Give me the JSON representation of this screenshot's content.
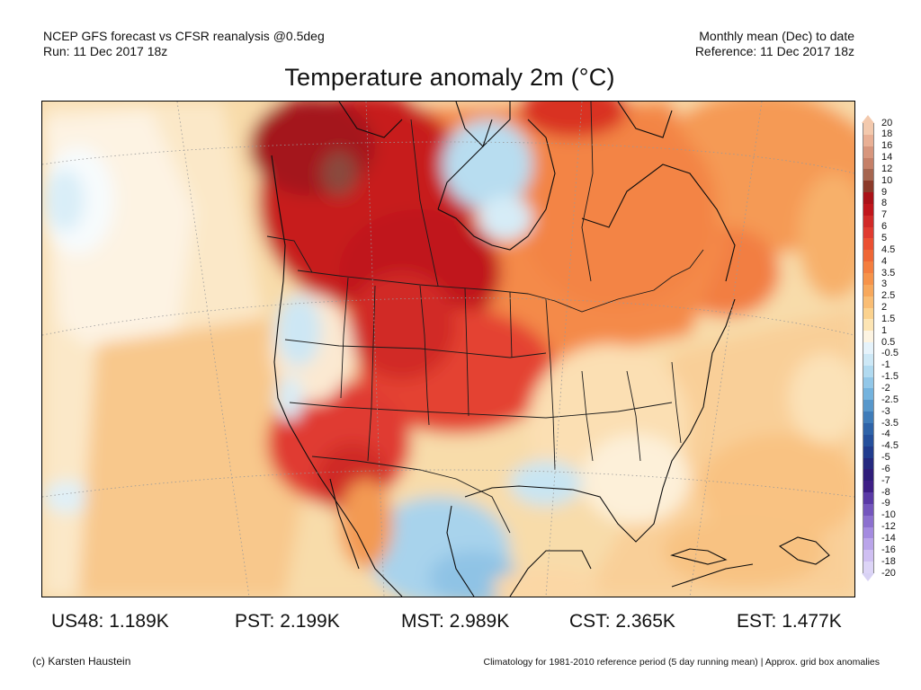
{
  "header": {
    "left_line1": "NCEP GFS forecast vs CFSR reanalysis @0.5deg",
    "left_line2": "Run: 11 Dec 2017 18z",
    "right_line1": "Monthly mean (Dec) to date",
    "right_line2": "Reference: 11 Dec 2017 18z"
  },
  "title": "Temperature anomaly 2m (°C)",
  "regional_means": [
    {
      "region": "US48",
      "value": "1.189K"
    },
    {
      "region": "PST",
      "value": "2.199K"
    },
    {
      "region": "MST",
      "value": "2.989K"
    },
    {
      "region": "CST",
      "value": "2.365K"
    },
    {
      "region": "EST",
      "value": "1.477K"
    }
  ],
  "footer": {
    "credit": "(c) Karsten Haustein",
    "note": "Climatology for 1981-2010 reference period (5 day running mean) | Approx. grid box anomalies"
  },
  "legend": {
    "labels": [
      "20",
      "18",
      "16",
      "14",
      "12",
      "10",
      "9",
      "8",
      "7",
      "6",
      "5",
      "4.5",
      "4",
      "3.5",
      "3",
      "2.5",
      "2",
      "1.5",
      "1",
      "0.5",
      "-0.5",
      "-1",
      "-1.5",
      "-2",
      "-2.5",
      "-3",
      "-3.5",
      "-4",
      "-4.5",
      "-5",
      "-6",
      "-7",
      "-8",
      "-9",
      "-10",
      "-12",
      "-14",
      "-16",
      "-18",
      "-20"
    ],
    "colors": [
      "#f3c9ad",
      "#e9b095",
      "#d7967d",
      "#c58068",
      "#a66650",
      "#8b3a2a",
      "#aa1218",
      "#c0161c",
      "#d12a28",
      "#e03b30",
      "#eb5032",
      "#ef6736",
      "#f47e3f",
      "#f6934a",
      "#f7a85c",
      "#f9bd74",
      "#fbd28e",
      "#fde5b4",
      "#fdf4e2",
      "#e6f3fb",
      "#cde8f6",
      "#b1daf0",
      "#92c7e8",
      "#74b3de",
      "#5797cb",
      "#3f7cb9",
      "#2e63a8",
      "#25509c",
      "#213c8e",
      "#25297f",
      "#2f1d7a",
      "#3e1f86",
      "#5a3aa6",
      "#7456bd",
      "#8c70cf",
      "#a48be0",
      "#baa5ea",
      "#cfbff2",
      "#ddd5f7"
    ]
  }
}
